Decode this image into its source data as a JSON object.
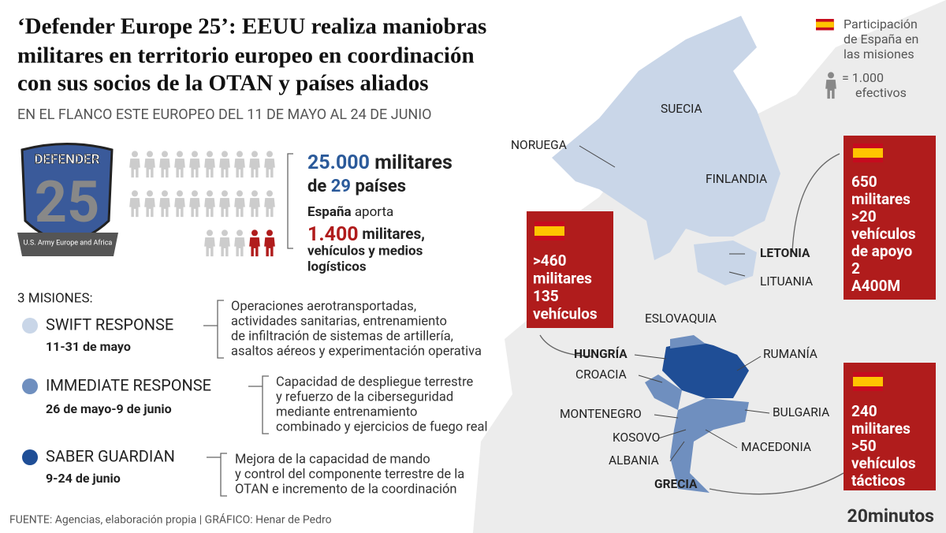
{
  "header": {
    "title": [
      "‘Defender Europe 25’: EEUU realiza maniobras",
      "militares en territorio europeo en coordinación",
      "con sus socios de la OTAN y países aliados"
    ],
    "subtitle": "EN EL FLANCO ESTE EUROPEO DEL 11 DE MAYO AL 24 DE JUNIO"
  },
  "legend": {
    "spain": [
      "Participación",
      "de España en",
      "las misiones"
    ],
    "unit": [
      "= 1.000",
      "efectivos"
    ]
  },
  "logo": {
    "name": "DEFENDER",
    "number": "25",
    "ribbon": "U.S. Army Europe and Africa"
  },
  "summary": {
    "total": "25.000",
    "total_unit": "militares",
    "countries": [
      "de",
      "29",
      "países"
    ],
    "spain": [
      "España",
      "aporta"
    ],
    "spain_total": "1.400",
    "spain_unit": "militares,",
    "spain_rest": [
      "vehículos y medios",
      "logísticos"
    ]
  },
  "missions": {
    "heading": "3 MISIONES:",
    "items": [
      {
        "name": "SWIFT RESPONSE",
        "dates": "11-31 de mayo",
        "description": [
          "Operaciones aerotransportadas,",
          "actividades sanitarias, entrenamiento",
          "de infiltración de sistemas de artillería,",
          "asaltos aéreos y experimentación operativa"
        ]
      },
      {
        "name": "IMMEDIATE RESPONSE",
        "dates": "26 de mayo-9 de junio",
        "description": [
          "Capacidad de despliegue terrestre",
          "y refuerzo de la ciberseguridad",
          "mediante entrenamiento",
          "combinado y ejercicios de fuego real"
        ]
      },
      {
        "name": "SABER GUARDIAN",
        "dates": "9-24 de junio",
        "description": [
          "Mejora de la capacidad de mando",
          "y control del componente terrestre de la",
          "OTAN e incremento de la coordinación"
        ]
      }
    ]
  },
  "map": {
    "labels": [
      "NORUEGA",
      "SUECIA",
      "FINLANDIA",
      "LETONIA",
      "LITUANIA",
      "ESLOVAQUIA",
      "HUNGRÍA",
      "RUMANÍA",
      "CROACIA",
      "MONTENEGRO",
      "BULGARIA",
      "KOSOVO",
      "MACEDONIA",
      "ALBANIA",
      "GRECIA"
    ]
  },
  "boxes": [
    [
      ">460",
      "militares",
      "135",
      "vehículos"
    ],
    [
      "650",
      "militares",
      ">20",
      "vehículos",
      "de apoyo",
      "2",
      "A400M"
    ],
    [
      "240",
      "militares",
      ">50",
      "vehículos",
      "tácticos"
    ]
  ],
  "footer": {
    "source": "FUENTE: Agencias, elaboración propia  |  GRÁFICO: Henar de Pedro",
    "brand": "20minutos"
  }
}
